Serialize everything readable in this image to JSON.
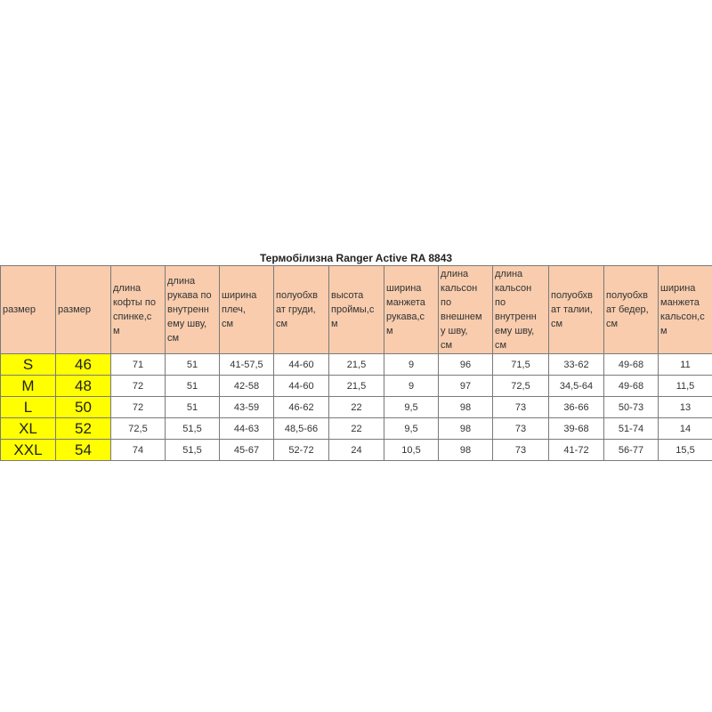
{
  "title": "Термобілизна Ranger Active RA 8843",
  "headers": [
    "размер",
    "размер",
    "длина\nкофты по\nспинке,с\nм",
    "длина\nрукава по\nвнутренн\nему шву,\nсм",
    "ширина\nплеч,\nсм",
    "полуобхв\nат груди,\nсм",
    "высота\nпроймы,с\nм",
    "ширина\nманжета\nрукава,с\nм",
    "длина\nкальсон\nпо\nвнешнем\nу шву,\nсм",
    "длина\nкальсон\nпо\nвнутренн\nему шву,\nсм",
    "полуобхв\nат талии,\nсм",
    "полуобхв\nат бедер,\nсм",
    "ширина\nманжета\nкальсон,с\nм"
  ],
  "rows": [
    [
      "S",
      "46",
      "71",
      "51",
      "41-57,5",
      "44-60",
      "21,5",
      "9",
      "96",
      "71,5",
      "33-62",
      "49-68",
      "11"
    ],
    [
      "M",
      "48",
      "72",
      "51",
      "42-58",
      "44-60",
      "21,5",
      "9",
      "97",
      "72,5",
      "34,5-64",
      "49-68",
      "11,5"
    ],
    [
      "L",
      "50",
      "72",
      "51",
      "43-59",
      "46-62",
      "22",
      "9,5",
      "98",
      "73",
      "36-66",
      "50-73",
      "13"
    ],
    [
      "XL",
      "52",
      "72,5",
      "51,5",
      "44-63",
      "48,5-66",
      "22",
      "9,5",
      "98",
      "73",
      "39-68",
      "51-74",
      "14"
    ],
    [
      "XXL",
      "54",
      "74",
      "51,5",
      "45-67",
      "52-72",
      "24",
      "10,5",
      "98",
      "73",
      "41-72",
      "56-77",
      "15,5"
    ]
  ],
  "colors": {
    "header_bg": "#f8ccad",
    "size_bg": "#ffff00"
  }
}
